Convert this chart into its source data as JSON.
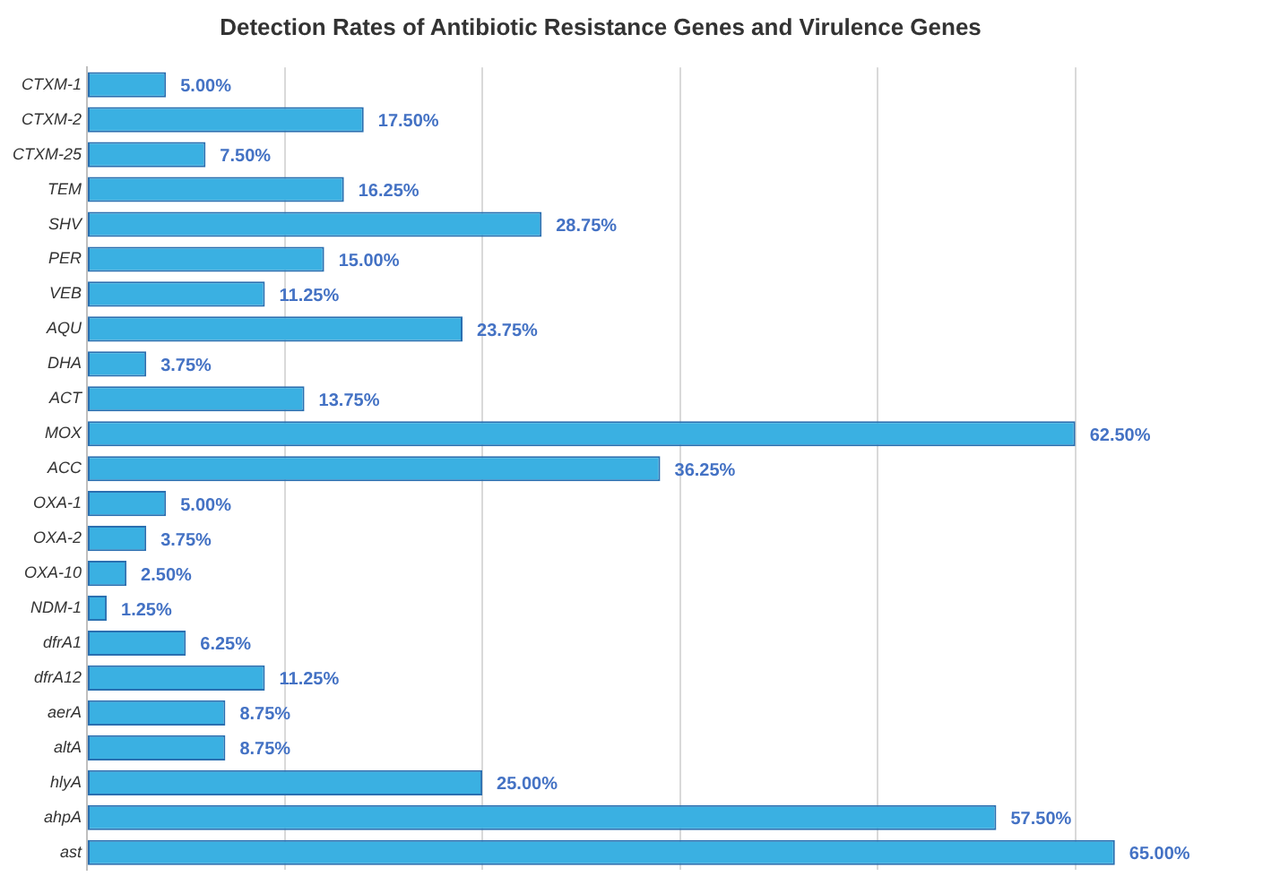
{
  "chart_data": {
    "type": "bar",
    "orientation": "horizontal",
    "title": "Detection Rates of Antibiotic Resistance Genes and Virulence Genes",
    "categories": [
      "CTXM-1",
      "CTXM-2",
      "CTXM-25",
      "TEM",
      "SHV",
      "PER",
      "VEB",
      "AQU",
      "DHA",
      "ACT",
      "MOX",
      "ACC",
      "OXA-1",
      "OXA-2",
      "OXA-10",
      "NDM-1",
      "dfrA1",
      "dfrA12",
      "aerA",
      "altA",
      "hlyA",
      "ahpA",
      "ast"
    ],
    "values": [
      5.0,
      17.5,
      7.5,
      16.25,
      28.75,
      15.0,
      11.25,
      23.75,
      3.75,
      13.75,
      62.5,
      36.25,
      5.0,
      3.75,
      2.5,
      1.25,
      6.25,
      11.25,
      8.75,
      8.75,
      25.0,
      57.5,
      65.0
    ],
    "value_labels": [
      "5.00%",
      "17.50%",
      "7.50%",
      "16.25%",
      "28.75%",
      "15.00%",
      "11.25%",
      "23.75%",
      "3.75%",
      "13.75%",
      "62.50%",
      "36.25%",
      "5.00%",
      "3.75%",
      "2.50%",
      "1.25%",
      "6.25%",
      "11.25%",
      "8.75%",
      "8.75%",
      "25.00%",
      "57.50%",
      "65.00%"
    ],
    "color": "#3ab0e2",
    "xticks": [
      {
        "value": 0,
        "label": null
      },
      {
        "value": 12.5,
        "label": null
      },
      {
        "value": 25,
        "label": null
      },
      {
        "value": 37.5,
        "label": null
      },
      {
        "value": 50,
        "label": null
      },
      {
        "value": 62.5,
        "label": null
      }
    ],
    "grid": "x",
    "tick_labels": "y"
  }
}
